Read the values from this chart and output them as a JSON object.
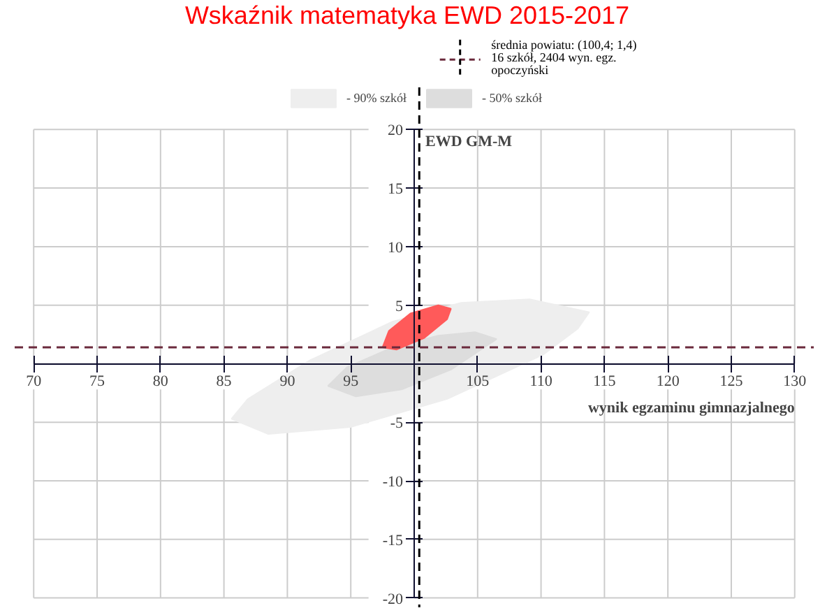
{
  "chart_data": {
    "type": "area",
    "title": "Wskaźnik matematyka EWD   2015-2017",
    "xlabel": "wynik egzaminu gimnazjalnego",
    "ylabel": "EWD GM-M",
    "series": [
      {
        "name": "- 90% szkół",
        "color": "#eeeeee",
        "x": [
          113.8,
          109.1,
          103.7,
          98.3,
          91.8,
          86.9,
          85.6,
          88.5,
          95.0,
          102.6,
          110.2,
          112.9
        ],
        "values": [
          4.4,
          5.5,
          5.2,
          3.6,
          0.3,
          -3.0,
          -4.7,
          -6.0,
          -5.4,
          -3.0,
          0.8,
          3.0
        ]
      },
      {
        "name": "- 50% szkół",
        "color": "#dddddd",
        "x": [
          106.5,
          104.8,
          101.9,
          98.3,
          94.7,
          93.2,
          95.4,
          99.0,
          102.9
        ],
        "values": [
          2.1,
          2.7,
          2.4,
          1.4,
          -0.3,
          -1.9,
          -2.8,
          -2.2,
          -0.5
        ]
      },
      {
        "color": "#ff5a5a",
        "x": [
          97.5,
          98.0,
          99.7,
          101.9,
          102.9,
          102.6,
          100.8,
          98.6
        ],
        "values": [
          1.4,
          2.8,
          4.3,
          5.0,
          4.7,
          3.8,
          2.2,
          1.2
        ]
      }
    ],
    "ref_lines": [
      {
        "axis": "x",
        "value": 100.4,
        "color": "#000000",
        "line_style": "dashed"
      },
      {
        "axis": "y",
        "value": 1.4,
        "color": "#6b2a3c",
        "line_style": "dashed",
        "label": "średnia powiatu: (100,4; 1,4)\n16 szkół, 2404 wyn. egz.\nopoczyński"
      }
    ],
    "xlim": [
      70,
      130
    ],
    "ylim": [
      -20,
      20
    ],
    "xticks": [
      70,
      75,
      80,
      85,
      90,
      95,
      {
        "value": 100,
        "label": null
      },
      105,
      110,
      115,
      120,
      125,
      130
    ],
    "yticks": [
      -20,
      -15,
      -10,
      -5,
      {
        "value": 0,
        "label": null
      },
      5,
      10,
      15,
      20
    ],
    "grid": true,
    "legend": "top"
  }
}
